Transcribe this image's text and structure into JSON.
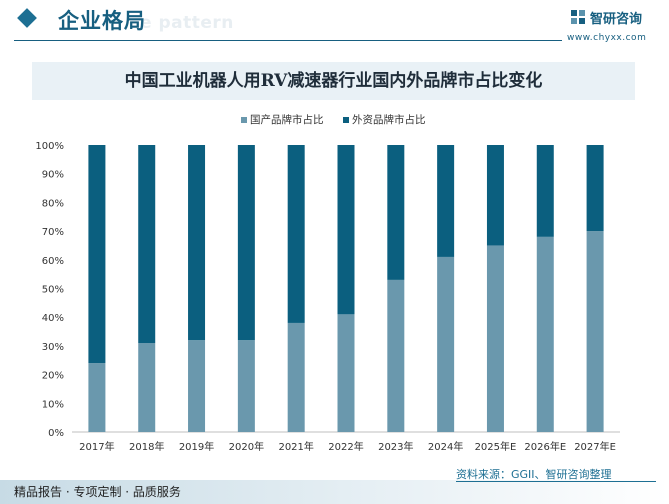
{
  "header": {
    "title": "企业格局",
    "watermark": "e pattern",
    "brand_name": "智研咨询",
    "brand_url": "www.chyxx.com"
  },
  "footer": {
    "left_text": "精品报告 · 专项定制 · 品质服务",
    "source": "资料来源：GGII、智研咨询整理"
  },
  "colors": {
    "domestic": "#6a98ad",
    "foreign": "#0b5f7f",
    "accent": "#175f80"
  },
  "chart_data": {
    "type": "bar",
    "stacked": true,
    "title": "中国工业机器人用RV减速器行业国内外品牌市占比变化",
    "categories": [
      "2017年",
      "2018年",
      "2019年",
      "2020年",
      "2021年",
      "2022年",
      "2023年",
      "2024年",
      "2025年E",
      "2026年E",
      "2027年E"
    ],
    "series": [
      {
        "name": "国产品牌市占比",
        "values": [
          24,
          31,
          32,
          32,
          38,
          41,
          53,
          61,
          65,
          68,
          70
        ]
      },
      {
        "name": "外资品牌市占比",
        "values": [
          76,
          69,
          68,
          68,
          62,
          59,
          47,
          39,
          35,
          32,
          30
        ]
      }
    ],
    "ylim": [
      0,
      100
    ],
    "yticks": [
      "0%",
      "10%",
      "20%",
      "30%",
      "40%",
      "50%",
      "60%",
      "70%",
      "80%",
      "90%",
      "100%"
    ],
    "xlabel": "",
    "ylabel": "",
    "legend_position": "top",
    "grid": false
  }
}
